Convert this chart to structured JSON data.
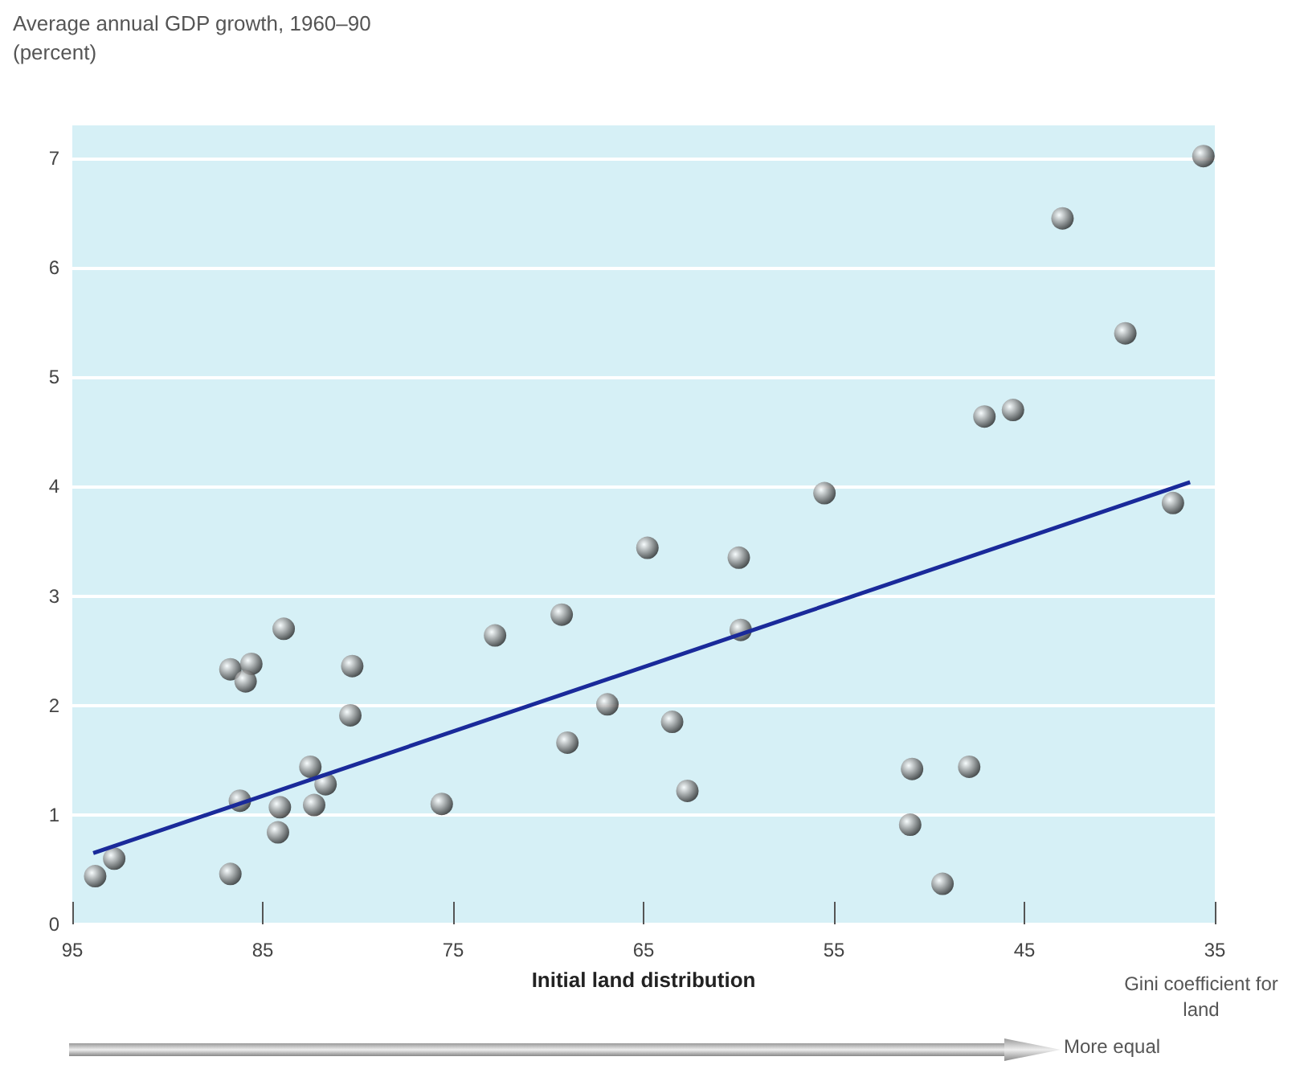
{
  "chart_data": {
    "type": "scatter",
    "ylabel": "Average annual GDP growth, 1960–90 (percent)",
    "xlabel": "Initial land distribution",
    "annotations": [
      "Gini coefficient for land",
      "More equal"
    ],
    "xlim": [
      95,
      35
    ],
    "xticks": [
      95,
      85,
      75,
      65,
      55,
      45,
      35
    ],
    "ylim": [
      0,
      7.3
    ],
    "yticks": [
      0,
      1,
      2,
      3,
      4,
      5,
      6,
      7
    ],
    "grid": "y",
    "marker": "circle",
    "series": [
      {
        "color": "#7a7a7a",
        "x": [
          93.8,
          92.8,
          86.7,
          86.7,
          85.6,
          85.9,
          86.2,
          83.9,
          84.1,
          84.2,
          82.5,
          82.3,
          81.7,
          80.3,
          80.4,
          75.6,
          72.8,
          69.3,
          69.0,
          66.9,
          64.8,
          63.5,
          62.7,
          60.0,
          59.9,
          55.5,
          50.9,
          51.0,
          49.3,
          47.9,
          47.1,
          45.6,
          43.0,
          39.7,
          37.2,
          35.6
        ],
        "values": [
          0.44,
          0.6,
          0.46,
          2.33,
          2.38,
          2.22,
          1.13,
          2.7,
          1.07,
          0.84,
          1.44,
          1.09,
          1.28,
          2.36,
          1.91,
          1.1,
          2.64,
          2.83,
          1.66,
          2.01,
          3.44,
          1.85,
          1.22,
          3.35,
          2.69,
          3.94,
          1.42,
          0.91,
          0.37,
          1.44,
          4.64,
          4.7,
          6.45,
          5.4,
          3.85,
          7.02
        ]
      },
      {
        "type": "line",
        "color": "#1a2a9a",
        "marker": "none",
        "x": [
          93.9,
          36.3
        ],
        "values": [
          0.65,
          4.04
        ]
      }
    ]
  }
}
